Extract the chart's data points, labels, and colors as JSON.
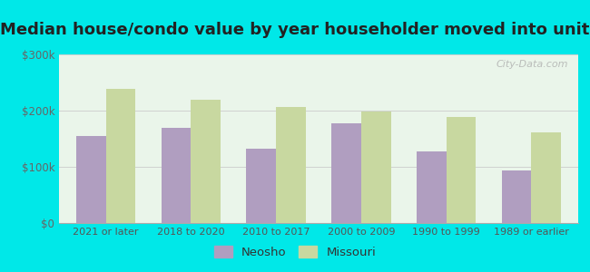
{
  "title": "Median house/condo value by year householder moved into unit",
  "categories": [
    "2021 or later",
    "2018 to 2020",
    "2010 to 2017",
    "2000 to 2009",
    "1990 to 1999",
    "1989 or earlier"
  ],
  "neosho": [
    155000,
    170000,
    132000,
    178000,
    128000,
    93000
  ],
  "missouri": [
    238000,
    220000,
    207000,
    198000,
    188000,
    162000
  ],
  "neosho_color": "#b09ec0",
  "missouri_color": "#c8d8a0",
  "background_outer": "#00e8e8",
  "background_inner": "#eaf5ea",
  "ylim": [
    0,
    300000
  ],
  "yticks": [
    0,
    100000,
    200000,
    300000
  ],
  "ytick_labels": [
    "$0",
    "$100k",
    "$200k",
    "$300k"
  ],
  "legend_neosho": "Neosho",
  "legend_missouri": "Missouri",
  "watermark": "City-Data.com",
  "title_fontsize": 13,
  "bar_width": 0.35
}
